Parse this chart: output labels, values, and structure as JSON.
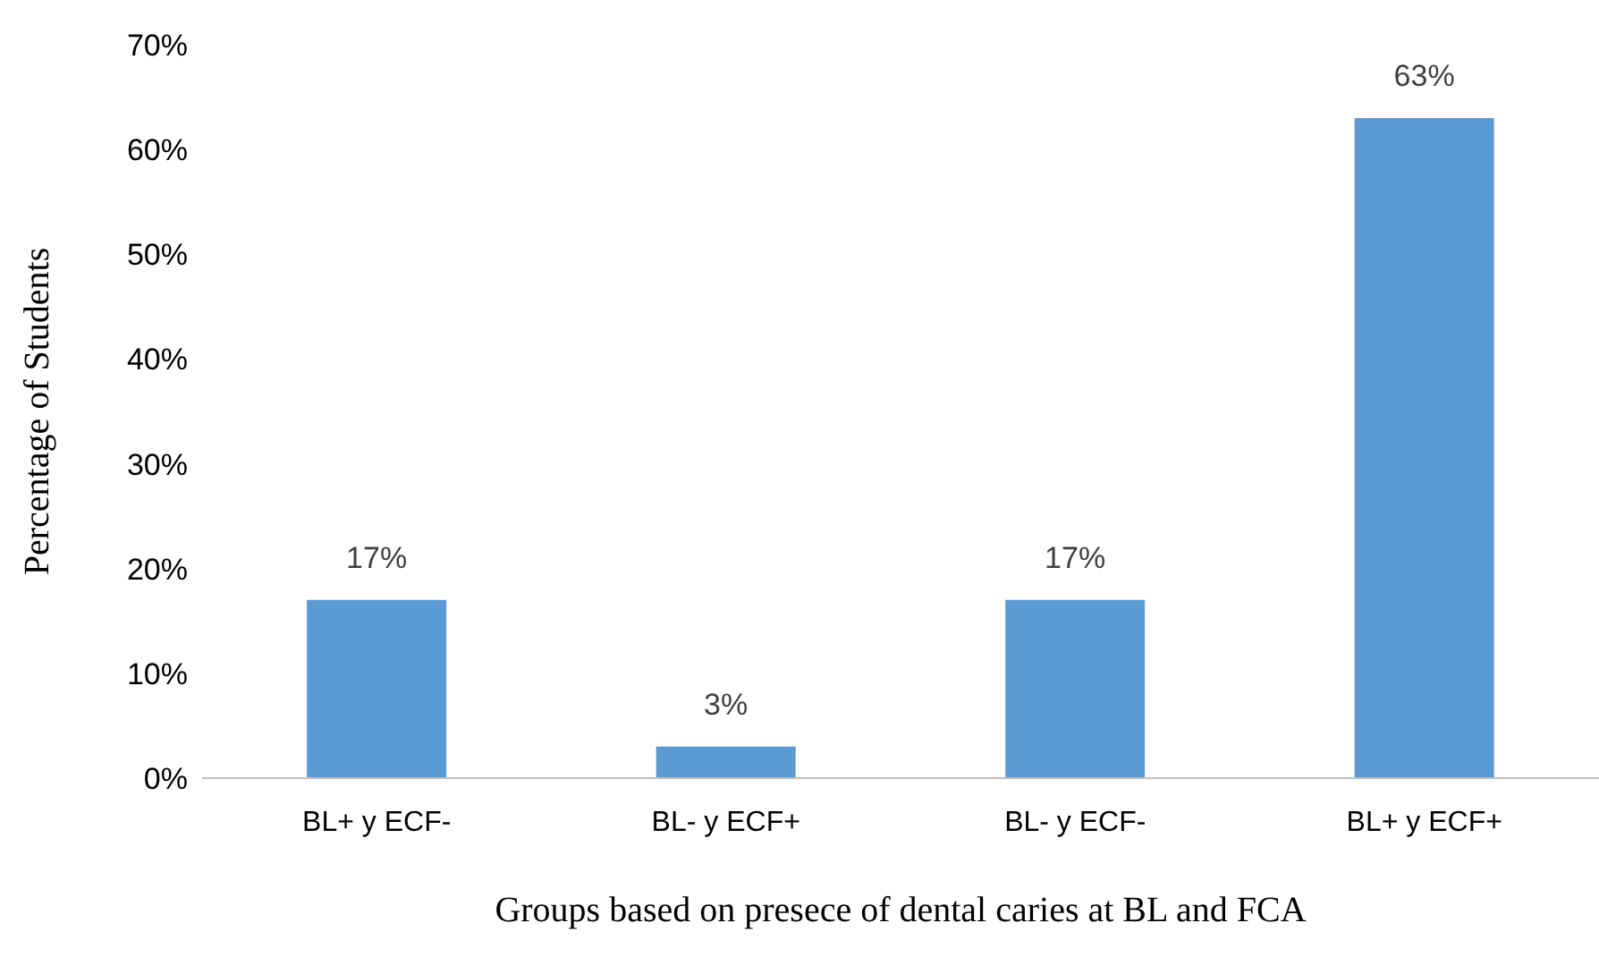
{
  "chart_data": {
    "type": "bar",
    "xlabel": "Groups based on presece of dental caries at BL and FCA",
    "ylabel": "Percentage of Students",
    "categories": [
      "BL+ y ECF-",
      "BL- y ECF+",
      "BL- y ECF-",
      "BL+ y ECF+"
    ],
    "values": [
      17,
      3,
      17,
      63
    ],
    "value_labels": [
      "17%",
      "3%",
      "17%",
      "63%"
    ],
    "color": "#5b9bd5",
    "ylim": [
      0,
      70
    ],
    "yticks": [
      {
        "value": 0,
        "label": "0%"
      },
      {
        "value": 10,
        "label": "10%"
      },
      {
        "value": 20,
        "label": "20%"
      },
      {
        "value": 30,
        "label": "30%"
      },
      {
        "value": 40,
        "label": "40%"
      },
      {
        "value": 50,
        "label": "50%"
      },
      {
        "value": 60,
        "label": "60%"
      },
      {
        "value": 70,
        "label": "70%"
      }
    ],
    "grid": false,
    "legend": false
  }
}
